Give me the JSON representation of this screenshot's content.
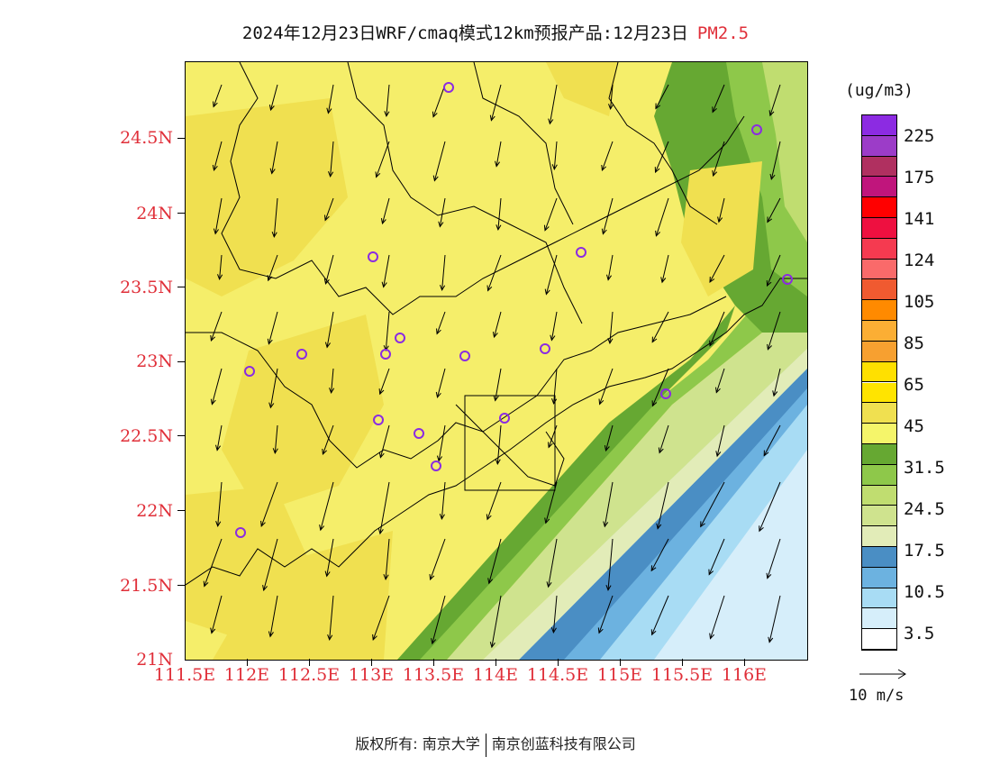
{
  "title": {
    "main": "2024年12月23日WRF/cmaq模式12km预报产品:12月23日",
    "species": "PM2.5"
  },
  "map": {
    "y_ticks": [
      "24.5N",
      "24N",
      "23.5N",
      "23N",
      "22.5N",
      "22N",
      "21.5N",
      "21N"
    ],
    "x_ticks": [
      "111.5E",
      "112E",
      "112.5E",
      "113E",
      "113.5E",
      "114E",
      "114.5E",
      "115E",
      "115.5E",
      "116E"
    ],
    "station_marker_color": "#8a2be2",
    "arrow_color": "#000000"
  },
  "legend": {
    "unit": "(ug/m3)",
    "labels": [
      "225",
      "175",
      "141",
      "124",
      "105",
      "85",
      "65",
      "45",
      "31.5",
      "24.5",
      "17.5",
      "10.5",
      "3.5"
    ],
    "colors": [
      "#8c2be2",
      "#9c3cc8",
      "#b03060",
      "#c0157c",
      "#ff0000",
      "#ee1040",
      "#f53a50",
      "#fa6a6a",
      "#f05a30",
      "#ff8a00",
      "#fbae34",
      "#f7a030",
      "#ffe000",
      "#ffe400",
      "#f0e050",
      "#f5f56a",
      "#66a832",
      "#8ec84a",
      "#c0dd70",
      "#cfe38e",
      "#e2ecb8",
      "#4a8ec4",
      "#6cb2e0",
      "#a8dcf4",
      "#d6eefa",
      "#ffffff"
    ]
  },
  "wind": {
    "reference_label": "10 m/s"
  },
  "footer": {
    "left": "版权所有: 南京大学",
    "right": "南京创蓝科技有限公司"
  }
}
